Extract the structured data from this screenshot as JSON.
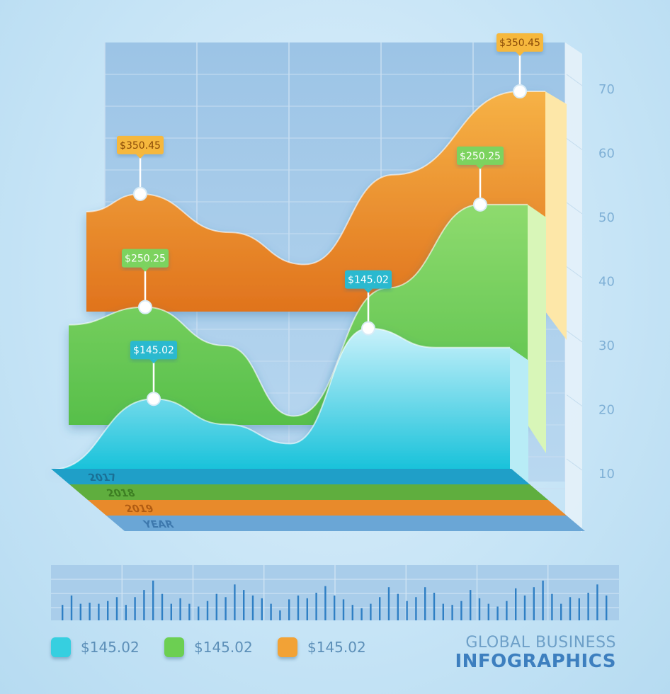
{
  "chart_data": {
    "type": "area",
    "y_ticks": [
      "10",
      "20",
      "30",
      "40",
      "50",
      "60",
      "70"
    ],
    "ylim": [
      5,
      75
    ],
    "series": [
      {
        "color": "#f3a63a",
        "values": [
          53,
          47,
          42,
          56,
          69,
          69
        ],
        "callouts": [
          {
            "index": 0,
            "label": "$350.45"
          },
          {
            "index": 4,
            "label": "$350.45"
          }
        ]
      },
      {
        "color": "#7cd35e",
        "values": [
          37,
          31,
          20,
          40,
          53,
          53
        ],
        "callouts": [
          {
            "index": 0,
            "label": "$250.25"
          },
          {
            "index": 4,
            "label": "$250.25"
          }
        ]
      },
      {
        "color": "#3fcde3",
        "values": [
          26,
          22,
          19,
          37,
          34,
          34
        ],
        "callouts": [
          {
            "index": 0,
            "label": "$145.02"
          },
          {
            "index": 3,
            "label": "$145.02"
          }
        ]
      }
    ],
    "floor_labels": [
      "2017",
      "2018",
      "2019",
      "YEAR"
    ],
    "bottom_bars": [
      0.28,
      0.45,
      0.3,
      0.32,
      0.3,
      0.35,
      0.42,
      0.28,
      0.42,
      0.55,
      0.72,
      0.48,
      0.3,
      0.4,
      0.3,
      0.25,
      0.35,
      0.48,
      0.42,
      0.65,
      0.55,
      0.45,
      0.4,
      0.3,
      0.18,
      0.38,
      0.45,
      0.4,
      0.5,
      0.62,
      0.45,
      0.38,
      0.28,
      0.22,
      0.3,
      0.42,
      0.6,
      0.48,
      0.35,
      0.42,
      0.6,
      0.5,
      0.3,
      0.28,
      0.35,
      0.55,
      0.4,
      0.3,
      0.25,
      0.35,
      0.58,
      0.45,
      0.6,
      0.72,
      0.48,
      0.3,
      0.42,
      0.4,
      0.5,
      0.65,
      0.45
    ]
  },
  "legend": [
    {
      "label": "$145.02",
      "color": "#36cfe0"
    },
    {
      "label": "$145.02",
      "color": "#6ccf52"
    },
    {
      "label": "$145.02",
      "color": "#f2a236"
    }
  ],
  "brand": {
    "line1": "GLOBAL BUSINESS",
    "line2": "INFOGRAPHICS"
  }
}
